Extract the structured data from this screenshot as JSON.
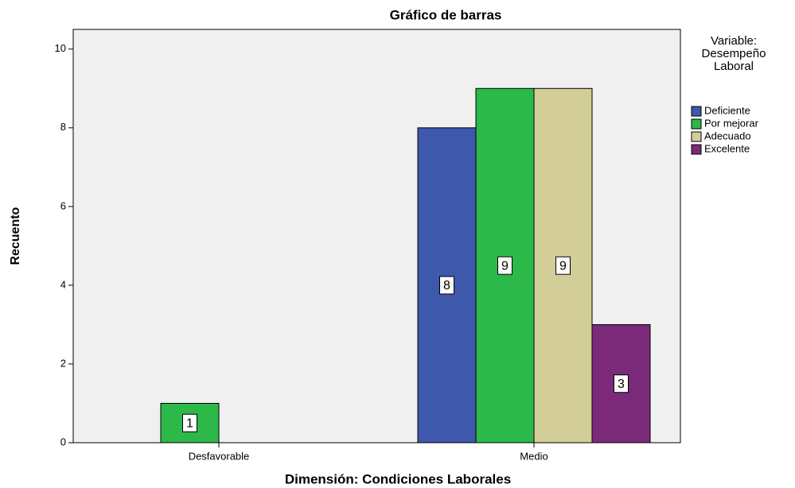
{
  "chart_data": {
    "type": "bar",
    "title": "Gráfico de barras",
    "x_label": "Dimensión: Condiciones Laborales",
    "y_label": "Recuento",
    "categories": [
      "Desfavorable",
      "Medio"
    ],
    "series": [
      {
        "name": "Deficiente",
        "color": "#3e58ac",
        "values": [
          null,
          8
        ]
      },
      {
        "name": "Por mejorar",
        "color": "#2db84a",
        "values": [
          1,
          9
        ]
      },
      {
        "name": "Adecuado",
        "color": "#d3ce97",
        "values": [
          null,
          9
        ]
      },
      {
        "name": "Excelente",
        "color": "#7b2a7a",
        "values": [
          null,
          3
        ]
      }
    ],
    "legend_title": "Variable: Desempeño Laboral",
    "legend": "right",
    "ylim": [
      0,
      10.5
    ],
    "yticks": [
      0,
      2,
      4,
      6,
      8,
      10
    ],
    "grid": false
  }
}
